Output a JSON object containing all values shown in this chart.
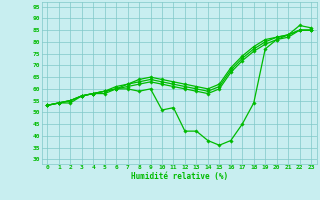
{
  "xlabel": "Humidité relative (%)",
  "xlim": [
    -0.5,
    23.5
  ],
  "ylim": [
    28,
    97
  ],
  "yticks": [
    30,
    35,
    40,
    45,
    50,
    55,
    60,
    65,
    70,
    75,
    80,
    85,
    90,
    95
  ],
  "xticks": [
    0,
    1,
    2,
    3,
    4,
    5,
    6,
    7,
    8,
    9,
    10,
    11,
    12,
    13,
    14,
    15,
    16,
    17,
    18,
    19,
    20,
    21,
    22,
    23
  ],
  "bg_color": "#c8eef0",
  "grid_color": "#80c8c8",
  "line_color": "#00bb00",
  "marker": "D",
  "marker_size": 1.8,
  "line_width": 0.9,
  "series": [
    [
      53,
      54,
      54,
      57,
      58,
      58,
      60,
      60,
      59,
      60,
      51,
      52,
      42,
      42,
      38,
      36,
      38,
      45,
      54,
      77,
      81,
      83,
      87,
      86
    ],
    [
      53,
      54,
      55,
      57,
      58,
      59,
      60,
      61,
      62,
      63,
      62,
      61,
      60,
      59,
      58,
      60,
      67,
      72,
      76,
      79,
      81,
      82,
      85,
      85
    ],
    [
      53,
      54,
      55,
      57,
      58,
      59,
      60,
      62,
      63,
      64,
      63,
      62,
      61,
      60,
      59,
      61,
      68,
      73,
      77,
      80,
      82,
      83,
      85,
      85
    ],
    [
      53,
      54,
      55,
      57,
      58,
      59,
      61,
      62,
      64,
      65,
      64,
      63,
      62,
      61,
      60,
      62,
      69,
      74,
      78,
      81,
      82,
      83,
      85,
      85
    ]
  ]
}
